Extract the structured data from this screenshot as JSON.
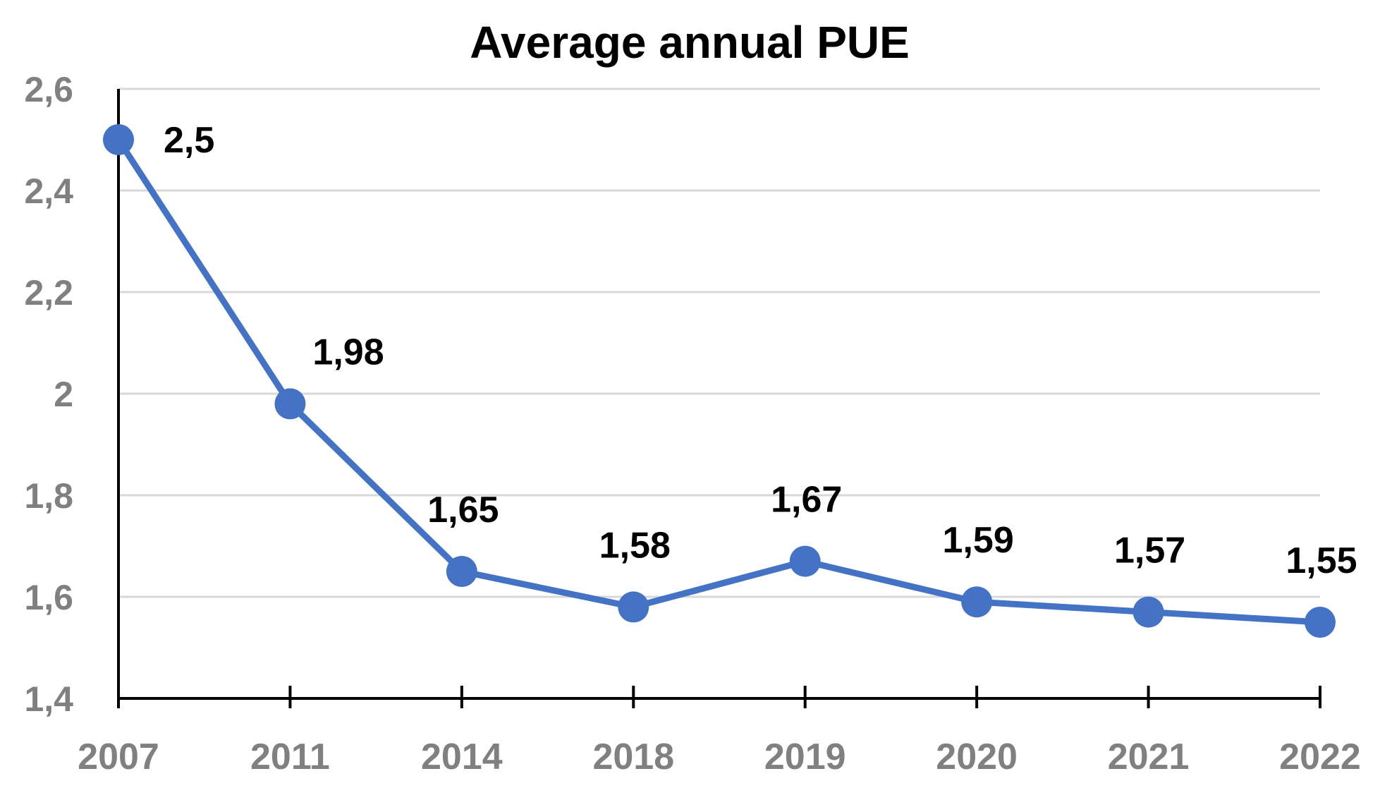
{
  "chart_data": {
    "type": "line",
    "title": "Average annual PUE",
    "xlabel": "",
    "ylabel": "",
    "categories": [
      "2007",
      "2011",
      "2014",
      "2018",
      "2019",
      "2020",
      "2021",
      "2022"
    ],
    "series": [
      {
        "values": [
          2.5,
          1.98,
          1.65,
          1.58,
          1.67,
          1.59,
          1.57,
          1.55
        ],
        "labels": [
          "2,5",
          "1,98",
          "1,65",
          "1,58",
          "1,67",
          "1,59",
          "1,57",
          "1,55"
        ],
        "color": "#4472C4"
      }
    ],
    "ylim": [
      1.4,
      2.6
    ],
    "yticks": [
      1.4,
      1.6,
      1.8,
      2.0,
      2.2,
      2.4,
      2.6
    ],
    "ytick_labels": [
      "1,4",
      "1,6",
      "1,8",
      "2",
      "2,2",
      "2,4",
      "2,6"
    ],
    "grid": true,
    "legend": "none",
    "colors": {
      "line": "#4472C4",
      "grid": "#D9D9D9",
      "axis": "#000000",
      "tick_text": "#808080",
      "title_text": "#000000",
      "data_label_text": "#000000"
    }
  }
}
